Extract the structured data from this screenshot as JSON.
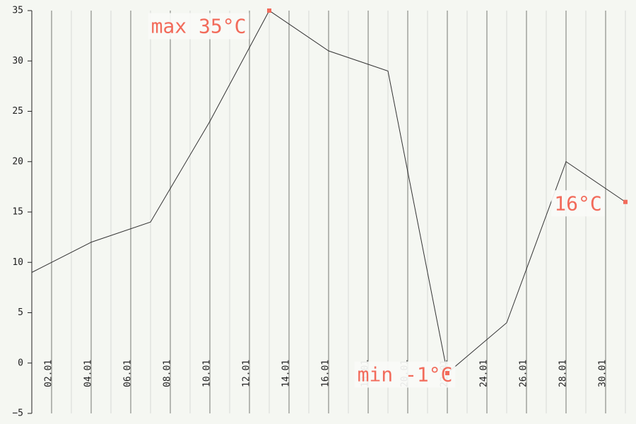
{
  "chart_data": {
    "type": "line",
    "title": "",
    "xlabel": "",
    "ylabel": "",
    "ylim": [
      -5,
      35
    ],
    "y_ticks": [
      -5,
      0,
      5,
      10,
      15,
      20,
      25,
      30,
      35
    ],
    "x_range": [
      "01.01",
      "31.01"
    ],
    "x_tick_labels": [
      "02.01",
      "04.01",
      "06.01",
      "08.01",
      "10.01",
      "12.01",
      "14.01",
      "16.01",
      "18.01",
      "20.01",
      "22.01",
      "24.01",
      "26.01",
      "28.01",
      "30.01"
    ],
    "grid": "vertical",
    "series": [
      {
        "x": [
          "01.01",
          "04.01",
          "07.01",
          "10.01",
          "13.01",
          "16.01",
          "19.01",
          "22.01",
          "25.01",
          "28.01",
          "31.01"
        ],
        "values": [
          9,
          12,
          14,
          24,
          35,
          31,
          29,
          -1,
          4,
          20,
          16
        ]
      }
    ],
    "annotations": [
      {
        "x": "13.01",
        "y": 35,
        "text": "max 35°C"
      },
      {
        "x": "22.01",
        "y": -1,
        "text": "min -1°C"
      },
      {
        "x": "31.01",
        "y": 16,
        "text": "16°C"
      }
    ],
    "colors": {
      "line": "#333333",
      "annotation": "#f26b5b",
      "grid_major": "#b5b7b2",
      "grid_minor": "#d8dad5",
      "background": "#f5f7f2",
      "label_box": "#f9faf7"
    }
  }
}
